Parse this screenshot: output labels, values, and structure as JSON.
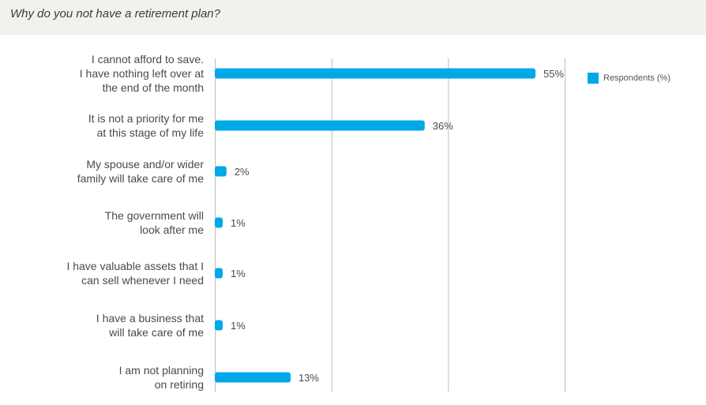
{
  "header": {
    "title": "Why do you not have a retirement plan?"
  },
  "legend": {
    "label": "Respondents (%)"
  },
  "colors": {
    "bar": "#00a8e8",
    "grid": "#bdbdbd",
    "text": "#4a4a4a"
  },
  "chart_data": {
    "type": "bar",
    "orientation": "horizontal",
    "categories": [
      [
        "I cannot afford to save.",
        "I have nothing left over at",
        "the end of the month"
      ],
      [
        "It is not a priority for me",
        "at this stage of my life"
      ],
      [
        "My spouse and/or wider",
        "family will take care of me"
      ],
      [
        "The government will",
        "look after me"
      ],
      [
        "I have valuable assets that I",
        "can sell whenever I need"
      ],
      [
        "I have a business that",
        "will take care of me"
      ],
      [
        "I am not planning",
        "on retiring"
      ]
    ],
    "series": [
      {
        "name": "Respondents (%)",
        "values": [
          55,
          36,
          2,
          1,
          1,
          1,
          13
        ],
        "labels": [
          "55%",
          "36%",
          "2%",
          "1%",
          "1%",
          "1%",
          "13%"
        ]
      }
    ],
    "xlim": [
      0,
      60
    ],
    "grid_values": [
      0,
      20,
      40,
      60
    ],
    "grid": true,
    "legend_position": "top-right"
  }
}
